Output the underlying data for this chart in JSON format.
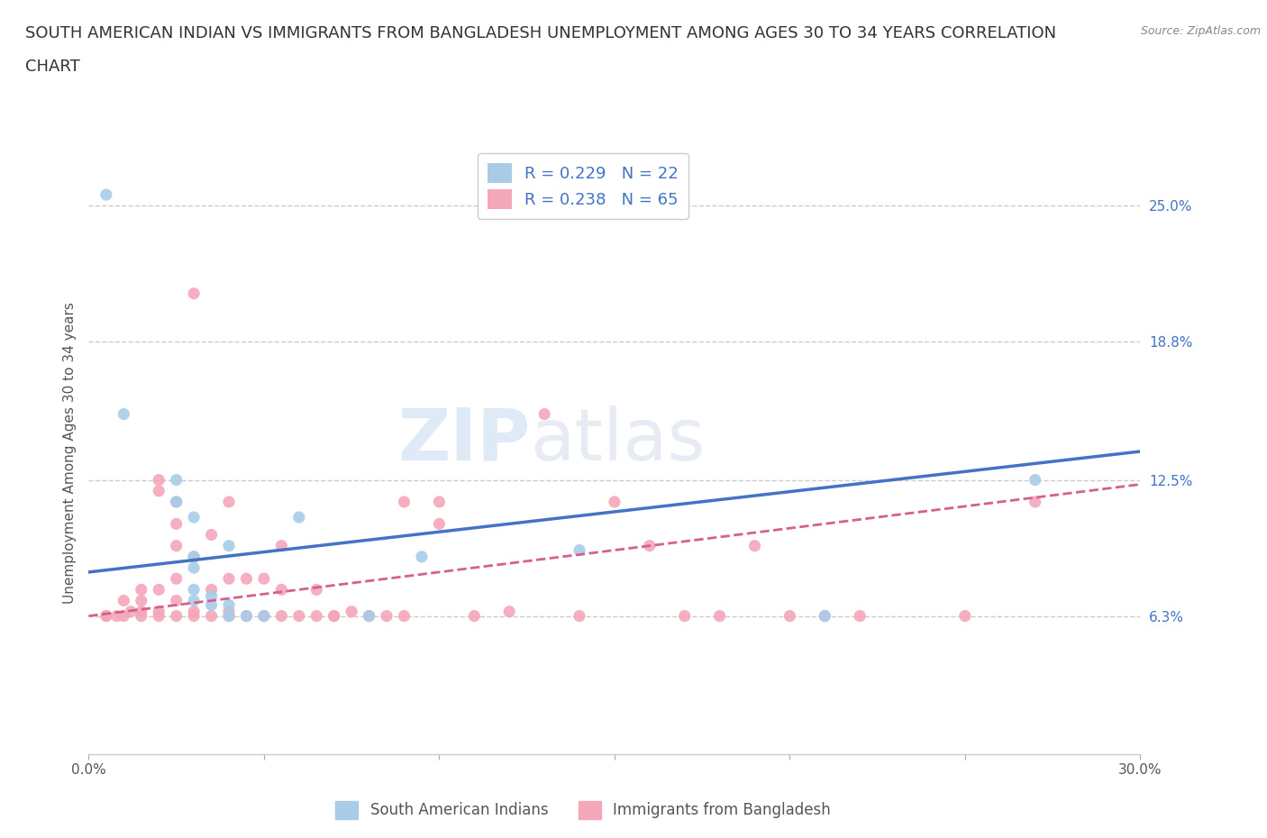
{
  "title_line1": "SOUTH AMERICAN INDIAN VS IMMIGRANTS FROM BANGLADESH UNEMPLOYMENT AMONG AGES 30 TO 34 YEARS CORRELATION",
  "title_line2": "CHART",
  "source": "Source: ZipAtlas.com",
  "ylabel": "Unemployment Among Ages 30 to 34 years",
  "xlim": [
    0.0,
    0.3
  ],
  "ylim": [
    0.0,
    0.275
  ],
  "yticks": [
    0.063,
    0.125,
    0.188,
    0.25
  ],
  "ytick_labels": [
    "6.3%",
    "12.5%",
    "18.8%",
    "25.0%"
  ],
  "xticks": [
    0.0,
    0.05,
    0.1,
    0.15,
    0.2,
    0.25,
    0.3
  ],
  "xtick_labels": [
    "0.0%",
    "",
    "",
    "",
    "",
    "",
    "30.0%"
  ],
  "grid_color": "#cccccc",
  "background_color": "#ffffff",
  "watermark_part1": "ZIP",
  "watermark_part2": "atlas",
  "legend_R1": "R = 0.229",
  "legend_N1": "N = 22",
  "legend_R2": "R = 0.238",
  "legend_N2": "N = 65",
  "legend_label1": "South American Indians",
  "legend_label2": "Immigrants from Bangladesh",
  "color_blue": "#a8cce8",
  "color_pink": "#f4a7b9",
  "line_color_blue": "#4472c4",
  "line_color_pink": "#d46090",
  "title_fontsize": 13,
  "axis_label_fontsize": 11,
  "tick_fontsize": 11,
  "blue_line_x0": 0.0,
  "blue_line_y0": 0.083,
  "blue_line_x1": 0.3,
  "blue_line_y1": 0.138,
  "pink_line_x0": 0.0,
  "pink_line_y0": 0.063,
  "pink_line_x1": 0.3,
  "pink_line_y1": 0.123,
  "scatter_blue": [
    [
      0.005,
      0.255
    ],
    [
      0.01,
      0.155
    ],
    [
      0.025,
      0.125
    ],
    [
      0.025,
      0.115
    ],
    [
      0.03,
      0.108
    ],
    [
      0.03,
      0.09
    ],
    [
      0.03,
      0.085
    ],
    [
      0.03,
      0.075
    ],
    [
      0.03,
      0.07
    ],
    [
      0.035,
      0.072
    ],
    [
      0.035,
      0.068
    ],
    [
      0.04,
      0.068
    ],
    [
      0.04,
      0.095
    ],
    [
      0.04,
      0.063
    ],
    [
      0.045,
      0.063
    ],
    [
      0.05,
      0.063
    ],
    [
      0.06,
      0.108
    ],
    [
      0.08,
      0.063
    ],
    [
      0.095,
      0.09
    ],
    [
      0.14,
      0.093
    ],
    [
      0.21,
      0.063
    ],
    [
      0.27,
      0.125
    ]
  ],
  "scatter_pink": [
    [
      0.005,
      0.063
    ],
    [
      0.005,
      0.063
    ],
    [
      0.008,
      0.063
    ],
    [
      0.01,
      0.063
    ],
    [
      0.01,
      0.07
    ],
    [
      0.012,
      0.065
    ],
    [
      0.015,
      0.065
    ],
    [
      0.015,
      0.07
    ],
    [
      0.015,
      0.075
    ],
    [
      0.015,
      0.063
    ],
    [
      0.02,
      0.12
    ],
    [
      0.02,
      0.125
    ],
    [
      0.02,
      0.075
    ],
    [
      0.02,
      0.063
    ],
    [
      0.02,
      0.065
    ],
    [
      0.025,
      0.115
    ],
    [
      0.025,
      0.105
    ],
    [
      0.025,
      0.095
    ],
    [
      0.025,
      0.08
    ],
    [
      0.025,
      0.07
    ],
    [
      0.025,
      0.063
    ],
    [
      0.03,
      0.063
    ],
    [
      0.03,
      0.065
    ],
    [
      0.03,
      0.09
    ],
    [
      0.03,
      0.21
    ],
    [
      0.035,
      0.063
    ],
    [
      0.035,
      0.075
    ],
    [
      0.035,
      0.1
    ],
    [
      0.04,
      0.065
    ],
    [
      0.04,
      0.08
    ],
    [
      0.04,
      0.115
    ],
    [
      0.04,
      0.063
    ],
    [
      0.045,
      0.063
    ],
    [
      0.045,
      0.08
    ],
    [
      0.05,
      0.063
    ],
    [
      0.05,
      0.08
    ],
    [
      0.055,
      0.063
    ],
    [
      0.055,
      0.075
    ],
    [
      0.055,
      0.095
    ],
    [
      0.06,
      0.063
    ],
    [
      0.065,
      0.063
    ],
    [
      0.065,
      0.075
    ],
    [
      0.07,
      0.063
    ],
    [
      0.07,
      0.063
    ],
    [
      0.075,
      0.065
    ],
    [
      0.08,
      0.063
    ],
    [
      0.085,
      0.063
    ],
    [
      0.09,
      0.063
    ],
    [
      0.09,
      0.115
    ],
    [
      0.1,
      0.105
    ],
    [
      0.1,
      0.115
    ],
    [
      0.11,
      0.063
    ],
    [
      0.12,
      0.065
    ],
    [
      0.13,
      0.155
    ],
    [
      0.14,
      0.063
    ],
    [
      0.15,
      0.115
    ],
    [
      0.16,
      0.095
    ],
    [
      0.17,
      0.063
    ],
    [
      0.18,
      0.063
    ],
    [
      0.19,
      0.095
    ],
    [
      0.2,
      0.063
    ],
    [
      0.21,
      0.063
    ],
    [
      0.22,
      0.063
    ],
    [
      0.25,
      0.063
    ],
    [
      0.27,
      0.115
    ]
  ]
}
